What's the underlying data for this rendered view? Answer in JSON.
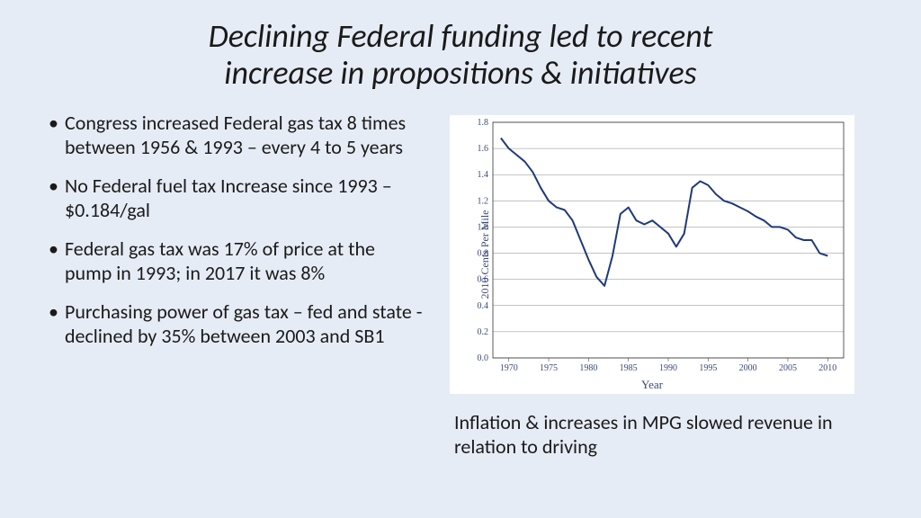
{
  "title_line1": "Declining Federal funding led to recent",
  "title_line2": "increase in propositions & initiatives",
  "bullets": [
    "Congress increased Federal gas tax 8 times between 1956 & 1993 –  every 4 to 5 years",
    "No Federal fuel tax Increase since 1993 –  $0.184/gal",
    "Federal gas tax was 17% of price at the pump in 1993;  in 2017 it was 8%",
    "Purchasing power of gas tax – fed and state - declined by 35% between 2003 and SB1"
  ],
  "caption": "Inflation & increases in MPG slowed revenue in relation to driving",
  "chart": {
    "type": "line",
    "xlabel": "Year",
    "ylabel": "2010 Cents Per Mile",
    "xlim": [
      1968,
      2012
    ],
    "ylim": [
      0.0,
      1.8
    ],
    "ytick_step": 0.2,
    "xticks": [
      1970,
      1975,
      1980,
      1985,
      1990,
      1995,
      2000,
      2005,
      2010
    ],
    "background_color": "#ffffff",
    "grid_color": "#888888",
    "axis_color": "#333333",
    "line_color": "#1f3a7a",
    "line_width": 2,
    "tick_font_size": 10,
    "label_font_size": 12,
    "label_color": "#3a4a7a",
    "series_x": [
      1969,
      1970,
      1971,
      1972,
      1973,
      1974,
      1975,
      1976,
      1977,
      1978,
      1979,
      1980,
      1981,
      1982,
      1983,
      1984,
      1985,
      1986,
      1987,
      1988,
      1989,
      1990,
      1991,
      1992,
      1993,
      1994,
      1995,
      1996,
      1997,
      1998,
      1999,
      2000,
      2001,
      2002,
      2003,
      2004,
      2005,
      2006,
      2007,
      2008,
      2009,
      2010
    ],
    "series_y": [
      1.68,
      1.6,
      1.55,
      1.5,
      1.42,
      1.3,
      1.2,
      1.15,
      1.13,
      1.05,
      0.9,
      0.75,
      0.62,
      0.55,
      0.78,
      1.1,
      1.15,
      1.05,
      1.02,
      1.05,
      1.0,
      0.95,
      0.85,
      0.95,
      1.3,
      1.35,
      1.32,
      1.25,
      1.2,
      1.18,
      1.15,
      1.12,
      1.08,
      1.05,
      1.0,
      1.0,
      0.98,
      0.92,
      0.9,
      0.9,
      0.8,
      0.78
    ]
  }
}
